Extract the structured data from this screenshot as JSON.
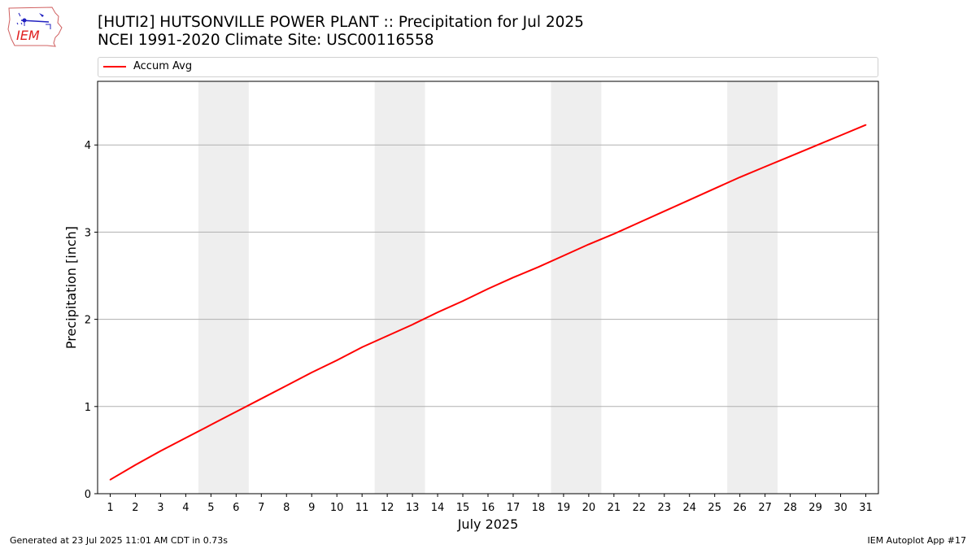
{
  "header": {
    "title_line1": "[HUTI2] HUTSONVILLE POWER PLANT :: Precipitation for Jul 2025",
    "title_line2": "NCEI 1991-2020 Climate Site: USC00116558",
    "logo_text": "IEM"
  },
  "footer": {
    "generated": "Generated at 23 Jul 2025 11:01 AM CDT in 0.73s",
    "app": "IEM Autoplot App #17"
  },
  "chart_data": {
    "type": "line",
    "title": "[HUTI2] HUTSONVILLE POWER PLANT :: Precipitation for Jul 2025",
    "xlabel": "July 2025",
    "ylabel": "Precipitation [inch]",
    "x": [
      1,
      2,
      3,
      4,
      5,
      6,
      7,
      8,
      9,
      10,
      11,
      12,
      13,
      14,
      15,
      16,
      17,
      18,
      19,
      20,
      21,
      22,
      23,
      24,
      25,
      26,
      27,
      28,
      29,
      30,
      31
    ],
    "xlim": [
      0.5,
      31.5
    ],
    "ylim": [
      0,
      4.73
    ],
    "yticks": [
      0,
      1,
      2,
      3,
      4
    ],
    "grid": "y",
    "legend": "top",
    "weekend_bands": [
      [
        4.5,
        6.5
      ],
      [
        11.5,
        13.5
      ],
      [
        18.5,
        20.5
      ],
      [
        25.5,
        27.5
      ]
    ],
    "band_color": "#eeeeee",
    "series": [
      {
        "name": "Accum Avg",
        "color": "#ff0000",
        "values": [
          0.16,
          0.33,
          0.49,
          0.64,
          0.79,
          0.94,
          1.09,
          1.24,
          1.39,
          1.53,
          1.68,
          1.81,
          1.94,
          2.08,
          2.21,
          2.35,
          2.48,
          2.6,
          2.73,
          2.86,
          2.98,
          3.11,
          3.24,
          3.37,
          3.5,
          3.63,
          3.75,
          3.87,
          3.99,
          4.11,
          4.23
        ]
      }
    ]
  }
}
